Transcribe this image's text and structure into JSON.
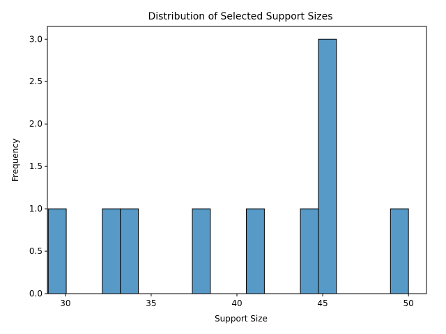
{
  "chart_data": {
    "type": "bar",
    "title": "Distribution of Selected Support Sizes",
    "xlabel": "Support Size",
    "ylabel": "Frequency",
    "xlim": [
      28.95,
      51.05
    ],
    "ylim": [
      0,
      3.15
    ],
    "x_ticks": [
      30,
      35,
      40,
      45,
      50
    ],
    "x_tick_labels": [
      "30",
      "35",
      "40",
      "45",
      "50"
    ],
    "y_ticks": [
      0,
      0.5,
      1.0,
      1.5,
      2.0,
      2.5,
      3.0
    ],
    "y_tick_labels": [
      "0.0",
      "0.5",
      "1.0",
      "1.5",
      "2.0",
      "2.5",
      "3.0"
    ],
    "bin_edges": [
      29.0,
      30.05,
      31.1,
      32.15,
      33.2,
      34.25,
      35.3,
      36.35,
      37.4,
      38.45,
      39.5,
      40.55,
      41.6,
      42.65,
      43.7,
      44.75,
      45.8,
      46.85,
      47.9,
      48.95,
      50.0
    ],
    "values": [
      1,
      0,
      0,
      1,
      1,
      0,
      0,
      0,
      1,
      0,
      0,
      1,
      0,
      0,
      1,
      3,
      0,
      0,
      0,
      1
    ],
    "grid": false,
    "bar_color": "#5799c7",
    "edge_color": "#000000"
  }
}
